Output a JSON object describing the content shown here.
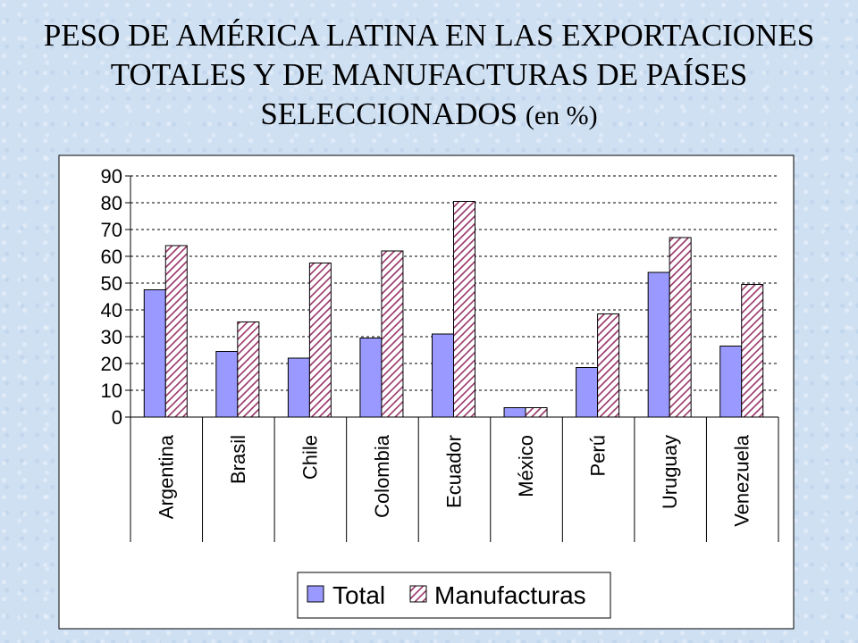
{
  "title_main": "PESO DE AMÉRICA LATINA EN LAS EXPORTACIONES\nTOTALES Y DE MANUFACTURAS DE PAÍSES\nSELECCIONADOS",
  "title_unit": "(en %)",
  "colors": {
    "total": "#9999ff",
    "manufacturas_hatch": "#993366",
    "manufacturas_bg": "#ffffff",
    "frame_bg": "#ffffff"
  },
  "chart_data": {
    "type": "bar",
    "categories": [
      "Argentina",
      "Brasil",
      "Chile",
      "Colombia",
      "Ecuador",
      "México",
      "Perú",
      "Uruguay",
      "Venezuela"
    ],
    "series": [
      {
        "name": "Total",
        "values": [
          47.5,
          24.5,
          22,
          29.5,
          31,
          3.5,
          18.5,
          54,
          26.5
        ]
      },
      {
        "name": "Manufacturas",
        "values": [
          64,
          35.5,
          57.5,
          62,
          80.5,
          3.5,
          38.5,
          67,
          49.5
        ]
      }
    ],
    "ylim": [
      0,
      90
    ],
    "yticks": [
      0,
      10,
      20,
      30,
      40,
      50,
      60,
      70,
      80,
      90
    ],
    "grid": true,
    "legend_position": "bottom-center"
  }
}
